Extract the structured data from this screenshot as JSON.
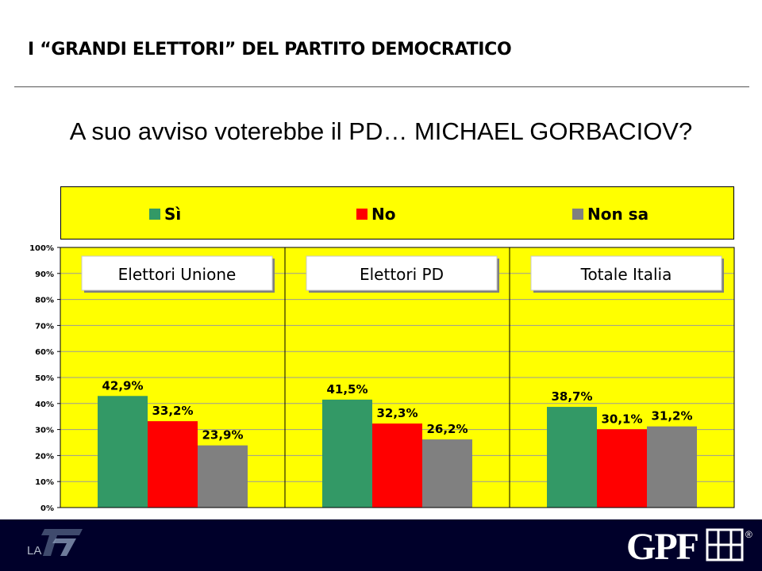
{
  "header": {
    "title": "I “GRANDI ELETTORI” DEL PARTITO DEMOCRATICO"
  },
  "question": "A suo avviso voterebbe il PD… MICHAEL GORBACIOV?",
  "colors": {
    "background": "#ffff00",
    "si": "#339966",
    "no": "#ff0000",
    "nonsa": "#808080",
    "footer": "#00002a"
  },
  "chart_data": {
    "type": "bar",
    "groups": [
      "Elettori Unione",
      "Elettori PD",
      "Totale Italia"
    ],
    "series": [
      {
        "name": "Sì",
        "color": "#339966",
        "values": [
          42.9,
          41.5,
          38.7
        ],
        "labels": [
          "42,9%",
          "41,5%",
          "38,7%"
        ]
      },
      {
        "name": "No",
        "color": "#ff0000",
        "values": [
          33.2,
          32.3,
          30.1
        ],
        "labels": [
          "33,2%",
          "32,3%",
          "30,1%"
        ]
      },
      {
        "name": "Non sa",
        "color": "#808080",
        "values": [
          23.9,
          26.2,
          31.2
        ],
        "labels": [
          "23,9%",
          "26,2%",
          "31,2%"
        ]
      }
    ],
    "yticks": [
      "0%",
      "10%",
      "20%",
      "30%",
      "40%",
      "50%",
      "60%",
      "70%",
      "80%",
      "90%",
      "100%"
    ],
    "ylim": [
      0,
      100
    ],
    "legend_position": "top",
    "grid": true
  },
  "footer": {
    "left_logo": {
      "icon": "la7-logo",
      "text": "LA"
    },
    "right_logo": {
      "icon": "gpf-logo",
      "text": "GPF",
      "mark": "®"
    }
  }
}
